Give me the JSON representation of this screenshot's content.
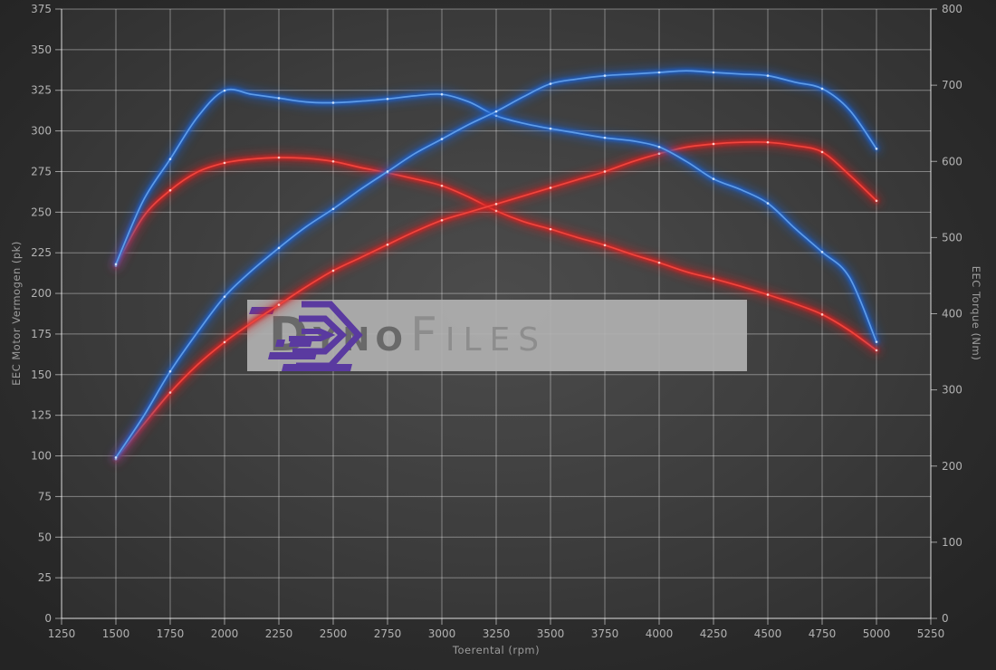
{
  "watermark": {
    "brand_primary": "Dyno",
    "brand_secondary": "Files",
    "logo_color": "#5a3aa0"
  },
  "chart_data": {
    "type": "line",
    "title": "",
    "xlabel": "Toerental (rpm)",
    "ylabel_left": "EEC Motor Vermogen (pk)",
    "ylabel_right": "EEC Torque (Nm)",
    "xlim": [
      1250,
      5250
    ],
    "ylim_left": [
      0,
      375
    ],
    "ylim_right": [
      0,
      800
    ],
    "x_ticks": [
      1250,
      1500,
      1750,
      2000,
      2250,
      2500,
      2750,
      3000,
      3250,
      3500,
      3750,
      4000,
      4250,
      4500,
      4750,
      5000,
      5250
    ],
    "y_ticks_left": [
      0,
      25,
      50,
      75,
      100,
      125,
      150,
      175,
      200,
      225,
      250,
      275,
      300,
      325,
      350,
      375
    ],
    "y_ticks_right": [
      0,
      100,
      200,
      300,
      400,
      500,
      600,
      700,
      800
    ],
    "grid": true,
    "legend": "none",
    "colors": {
      "tuned_glow": "#1e62d0",
      "tuned_core": "#5f9ce8",
      "tuned_dot": "#d8e8fb",
      "stock_glow": "#d42020",
      "stock_core": "#f0453d",
      "stock_dot": "#ffd9d4",
      "grid_line": "rgba(255,255,255,0.38)",
      "axis_line": "rgba(255,255,255,0.55)",
      "tick_text": "#b2b2b2"
    },
    "x": [
      1500,
      1625,
      1750,
      1875,
      2000,
      2125,
      2250,
      2375,
      2500,
      2625,
      2750,
      2875,
      3000,
      3125,
      3250,
      3375,
      3500,
      3625,
      3750,
      3875,
      4000,
      4125,
      4250,
      4375,
      4500,
      4625,
      4750,
      4875,
      5000
    ],
    "series": [
      {
        "name": "torque-stock",
        "axis": "right",
        "color_role": "stock",
        "values": [
          463,
          527,
          562,
          586,
          598,
          603,
          605,
          604,
          600,
          592,
          585,
          577,
          568,
          553,
          535,
          521,
          511,
          500,
          490,
          478,
          467,
          455,
          446,
          436,
          425,
          413,
          399,
          378,
          352
        ]
      },
      {
        "name": "power-stock",
        "axis": "left",
        "color_role": "stock",
        "values": [
          98,
          119,
          139,
          156,
          170,
          182,
          193,
          204,
          214,
          222,
          230,
          238,
          245,
          250,
          255,
          260,
          265,
          270,
          275,
          281,
          286,
          290,
          292,
          293,
          293,
          291,
          287,
          273,
          257
        ]
      },
      {
        "name": "torque-tuned",
        "axis": "right",
        "color_role": "tuned",
        "values": [
          465,
          548,
          603,
          658,
          693,
          688,
          683,
          678,
          677,
          679,
          682,
          686,
          688,
          678,
          660,
          650,
          643,
          637,
          631,
          627,
          619,
          600,
          577,
          563,
          545,
          512,
          481,
          448,
          363
        ]
      },
      {
        "name": "power-tuned",
        "axis": "left",
        "color_role": "tuned",
        "values": [
          99,
          124,
          152,
          176,
          198,
          214,
          228,
          241,
          252,
          264,
          275,
          286,
          295,
          304,
          312,
          321,
          329,
          332,
          334,
          335,
          336,
          337,
          336,
          335,
          334,
          330,
          326,
          313,
          289
        ]
      }
    ]
  }
}
